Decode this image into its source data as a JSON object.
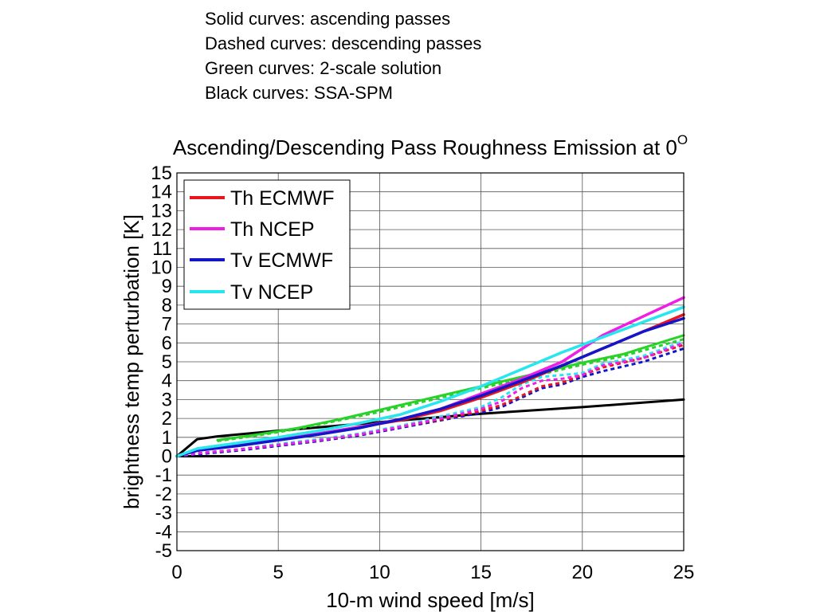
{
  "notes": [
    "Solid curves: ascending passes",
    "Dashed curves: descending passes",
    "Green curves: 2-scale solution",
    "Black curves: SSA-SPM"
  ],
  "chart_data": {
    "type": "line",
    "title": "Ascending/Descending Pass Roughness Emission at 0",
    "title_superscript": "O",
    "xlabel": "10-m wind speed [m/s]",
    "ylabel": "brightness temp perturbation [K]",
    "xlim": [
      0,
      25
    ],
    "ylim": [
      -5,
      15
    ],
    "xticks": [
      0,
      5,
      10,
      15,
      20,
      25
    ],
    "yticks": [
      -5,
      -4,
      -3,
      -2,
      -1,
      0,
      1,
      2,
      3,
      4,
      5,
      6,
      7,
      8,
      9,
      10,
      11,
      12,
      13,
      14,
      15
    ],
    "grid": true,
    "xgrid": [
      5,
      10,
      15,
      20
    ],
    "legend_position": "top-left",
    "legend": [
      {
        "name": "Th ECMWF",
        "color": "#e8141e"
      },
      {
        "name": "Th NCEP",
        "color": "#ee1ee6"
      },
      {
        "name": "Tv ECMWF",
        "color": "#1216c8"
      },
      {
        "name": "Tv NCEP",
        "color": "#28e6ee"
      }
    ],
    "series": [
      {
        "key": "zero",
        "color": "#000000",
        "dashed": false,
        "width": 3,
        "x": [
          0,
          25
        ],
        "y": [
          0,
          0
        ]
      },
      {
        "key": "ssa-spm",
        "color": "#000000",
        "dashed": false,
        "width": 3,
        "x": [
          0,
          1,
          2,
          3,
          5,
          10,
          15,
          20,
          25
        ],
        "y": [
          0,
          0.9,
          1.05,
          1.15,
          1.35,
          1.8,
          2.25,
          2.6,
          3.0
        ]
      },
      {
        "key": "two-scale-asc",
        "color": "#28d228",
        "dashed": false,
        "width": 3,
        "x": [
          2,
          4,
          6,
          8,
          10,
          12,
          14,
          16,
          18,
          20,
          22,
          25
        ],
        "y": [
          0.85,
          1.15,
          1.5,
          1.95,
          2.45,
          2.95,
          3.45,
          3.95,
          4.45,
          4.95,
          5.4,
          6.4
        ]
      },
      {
        "key": "two-scale-desc",
        "color": "#28d228",
        "dashed": true,
        "width": 3,
        "x": [
          2,
          4,
          6,
          8,
          10,
          12,
          14,
          16,
          18,
          20,
          22,
          25
        ],
        "y": [
          0.8,
          1.1,
          1.45,
          1.9,
          2.35,
          2.85,
          3.35,
          3.85,
          4.35,
          4.85,
          5.3,
          6.2
        ]
      },
      {
        "key": "tv-ecmwf-desc",
        "color": "#1216c8",
        "dashed": true,
        "width": 3,
        "x": [
          0,
          1,
          3,
          5,
          7,
          9,
          11,
          13,
          15,
          16,
          17,
          18,
          19,
          20,
          21,
          23,
          25
        ],
        "y": [
          0,
          0.1,
          0.3,
          0.55,
          0.8,
          1.1,
          1.5,
          1.9,
          2.3,
          2.6,
          3.1,
          3.6,
          3.8,
          4.2,
          4.5,
          5.0,
          5.7
        ]
      },
      {
        "key": "th-ecmwf-desc",
        "color": "#e8141e",
        "dashed": true,
        "width": 3,
        "x": [
          0,
          1,
          3,
          5,
          7,
          9,
          11,
          13,
          15,
          16,
          17,
          18,
          19,
          20,
          21,
          23,
          25
        ],
        "y": [
          0,
          0.15,
          0.35,
          0.6,
          0.85,
          1.15,
          1.55,
          1.95,
          2.4,
          2.7,
          3.2,
          3.7,
          3.9,
          4.3,
          4.7,
          5.2,
          5.9
        ]
      },
      {
        "key": "tv-ncep-desc",
        "color": "#28e6ee",
        "dashed": true,
        "width": 3,
        "x": [
          0,
          1,
          3,
          5,
          7,
          9,
          11,
          13,
          15,
          16,
          17,
          18,
          19,
          20,
          21,
          23,
          25
        ],
        "y": [
          0,
          0.15,
          0.35,
          0.65,
          0.9,
          1.2,
          1.6,
          2.1,
          2.6,
          3.1,
          3.8,
          4.2,
          4.3,
          4.4,
          4.9,
          5.3,
          6.1
        ]
      },
      {
        "key": "th-ncep-desc",
        "color": "#ee1ee6",
        "dashed": true,
        "width": 3,
        "x": [
          0,
          1,
          3,
          5,
          7,
          9,
          11,
          13,
          15,
          16,
          17,
          18,
          19,
          20,
          21,
          23,
          25
        ],
        "y": [
          0,
          0.15,
          0.35,
          0.6,
          0.85,
          1.15,
          1.55,
          2.0,
          2.5,
          2.9,
          3.6,
          4.0,
          4.1,
          4.3,
          4.8,
          5.2,
          6.0
        ]
      },
      {
        "key": "th-ecmwf-asc",
        "color": "#e8141e",
        "dashed": false,
        "width": 3.5,
        "x": [
          0,
          1,
          3,
          5,
          7,
          9,
          11,
          13,
          15,
          17,
          19,
          21,
          23,
          25
        ],
        "y": [
          0,
          0.35,
          0.6,
          0.9,
          1.2,
          1.55,
          1.9,
          2.4,
          3.1,
          3.9,
          4.8,
          5.7,
          6.6,
          7.5
        ]
      },
      {
        "key": "th-ncep-asc",
        "color": "#ee1ee6",
        "dashed": false,
        "width": 3.5,
        "x": [
          0,
          1,
          3,
          5,
          7,
          9,
          11,
          13,
          15,
          17,
          19,
          21,
          23,
          25
        ],
        "y": [
          0,
          0.35,
          0.6,
          0.9,
          1.2,
          1.55,
          1.95,
          2.5,
          3.3,
          4.1,
          5.0,
          6.4,
          7.4,
          8.4
        ]
      },
      {
        "key": "tv-ecmwf-asc",
        "color": "#1216c8",
        "dashed": false,
        "width": 3.5,
        "x": [
          0,
          1,
          3,
          5,
          7,
          9,
          11,
          13,
          15,
          17,
          19,
          21,
          23,
          25
        ],
        "y": [
          0,
          0.3,
          0.55,
          0.85,
          1.15,
          1.5,
          1.95,
          2.5,
          3.2,
          4.0,
          4.8,
          5.7,
          6.6,
          7.3
        ]
      },
      {
        "key": "tv-ncep-asc",
        "color": "#28e6ee",
        "dashed": false,
        "width": 3.5,
        "x": [
          0,
          1,
          3,
          5,
          7,
          9,
          11,
          13,
          15,
          17,
          19,
          21,
          23,
          25
        ],
        "y": [
          0,
          0.4,
          0.7,
          1.0,
          1.35,
          1.75,
          2.2,
          2.9,
          3.7,
          4.6,
          5.5,
          6.3,
          7.1,
          7.9
        ]
      }
    ]
  }
}
